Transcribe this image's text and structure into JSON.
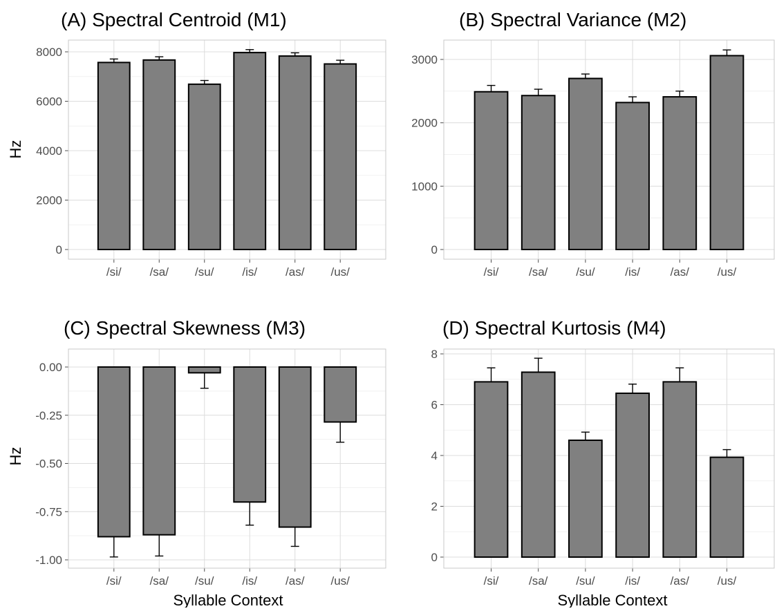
{
  "figure": {
    "xlabel": "Syllable Context",
    "ylabel": "Hz"
  },
  "chart_data": [
    {
      "type": "bar",
      "title": "(A) Spectral Centroid (M1)",
      "ylabel": "Hz",
      "xlabel": "",
      "categories": [
        "/si/",
        "/sa/",
        "/su/",
        "/is/",
        "/as/",
        "/us/"
      ],
      "values": [
        7570,
        7670,
        6690,
        7970,
        7830,
        7510
      ],
      "errors": [
        140,
        130,
        150,
        120,
        130,
        150
      ],
      "ylim": [
        0,
        8000
      ],
      "yticks": [
        0,
        2000,
        4000,
        6000,
        8000
      ],
      "ytick_labels": [
        "0",
        "2000",
        "4000",
        "6000",
        "8000"
      ],
      "grid": true
    },
    {
      "type": "bar",
      "title": "(B) Spectral Variance (M2)",
      "ylabel": "",
      "xlabel": "",
      "categories": [
        "/si/",
        "/sa/",
        "/su/",
        "/is/",
        "/as/",
        "/us/"
      ],
      "values": [
        2490,
        2430,
        2700,
        2320,
        2410,
        3060
      ],
      "errors": [
        100,
        100,
        70,
        90,
        90,
        90
      ],
      "ylim": [
        0,
        3000
      ],
      "yticks": [
        0,
        1000,
        2000,
        3000
      ],
      "ytick_labels": [
        "0",
        "1000",
        "2000",
        "3000"
      ],
      "grid": true
    },
    {
      "type": "bar",
      "title": "(C) Spectral Skewness (M3)",
      "ylabel": "Hz",
      "xlabel": "Syllable Context",
      "categories": [
        "/si/",
        "/sa/",
        "/su/",
        "/is/",
        "/as/",
        "/us/"
      ],
      "values": [
        -0.88,
        -0.87,
        -0.03,
        -0.7,
        -0.83,
        -0.285
      ],
      "errors": [
        0.105,
        0.11,
        0.08,
        0.12,
        0.1,
        0.105
      ],
      "ylim": [
        -1.0,
        0.0
      ],
      "yticks": [
        -1.0,
        -0.75,
        -0.5,
        -0.25,
        0.0
      ],
      "ytick_labels": [
        "-1.00",
        "-0.75",
        "-0.50",
        "-0.25",
        "0.00"
      ],
      "grid": true
    },
    {
      "type": "bar",
      "title": "(D) Spectral Kurtosis (M4)",
      "ylabel": "",
      "xlabel": "Syllable Context",
      "categories": [
        "/si/",
        "/sa/",
        "/su/",
        "/is/",
        "/as/",
        "/us/"
      ],
      "values": [
        6.9,
        7.28,
        4.6,
        6.45,
        6.9,
        3.93
      ],
      "errors": [
        0.55,
        0.55,
        0.32,
        0.36,
        0.55,
        0.3
      ],
      "ylim": [
        0,
        8
      ],
      "yticks": [
        0,
        2,
        4,
        6,
        8
      ],
      "ytick_labels": [
        "0",
        "2",
        "4",
        "6",
        "8"
      ],
      "grid": true
    }
  ]
}
